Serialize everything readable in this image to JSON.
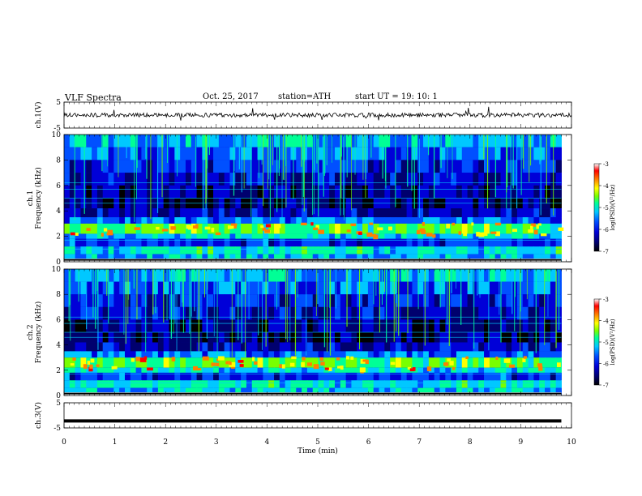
{
  "header": {
    "title": "VLF  Spectra",
    "date": "Oct. 25, 2017",
    "station": "station=ATH",
    "start_ut": "start  UT  =    19: 10: 1"
  },
  "colors": {
    "spectrum_palette": [
      "#000000",
      "#00006e",
      "#0000d8",
      "#0050ff",
      "#00c8ff",
      "#00ff96",
      "#78ff00",
      "#ffff00",
      "#ff8000",
      "#ff0000",
      "#ffffff"
    ]
  },
  "chart_data": [
    {
      "type": "line",
      "name": "ch1-waveform",
      "ylabel": "ch.1(V)",
      "ylim": [
        -5,
        5
      ],
      "yticks": [
        "5",
        "-5"
      ],
      "x_range_min": [
        0,
        10
      ],
      "approx_level": 0
    },
    {
      "type": "heatmap",
      "name": "ch1-spectrogram",
      "ylabel": "ch.1\nFrequency (kHz)",
      "ylim": [
        0,
        10
      ],
      "yticks": [
        "10",
        "8",
        "6",
        "4",
        "2",
        "0"
      ],
      "x_range_min": [
        0,
        9.8
      ],
      "emission_band_khz": [
        2,
        3
      ],
      "colorbar": {
        "label": "log(PSD)(V²/Hz)",
        "ticks": [
          "-3",
          "-4",
          "-5",
          "-6",
          "-7"
        ],
        "range": [
          -7,
          -3
        ]
      }
    },
    {
      "type": "heatmap",
      "name": "ch2-spectrogram",
      "ylabel": "ch.2\nFrequency (kHz)",
      "ylim": [
        0,
        10
      ],
      "yticks": [
        "10",
        "8",
        "6",
        "4",
        "2",
        "0"
      ],
      "x_range_min": [
        0,
        9.8
      ],
      "emission_band_khz": [
        2,
        3
      ],
      "colorbar": {
        "label": "log(PSD)(V²/Hz)",
        "ticks": [
          "-3",
          "-4",
          "-5",
          "-6",
          "-7"
        ],
        "range": [
          -7,
          -3
        ]
      }
    },
    {
      "type": "line",
      "name": "ch3-waveform",
      "ylabel": "ch.3(V)",
      "ylim": [
        -5,
        5
      ],
      "yticks": [
        "5",
        "-5"
      ],
      "x_range_min": [
        0,
        9.8
      ],
      "approx_level": -2.2
    }
  ],
  "x_axis": {
    "label": "Time  (min)",
    "ticks": [
      "0",
      "1",
      "2",
      "3",
      "4",
      "5",
      "6",
      "7",
      "8",
      "9",
      "10"
    ],
    "range": [
      0,
      10
    ]
  }
}
